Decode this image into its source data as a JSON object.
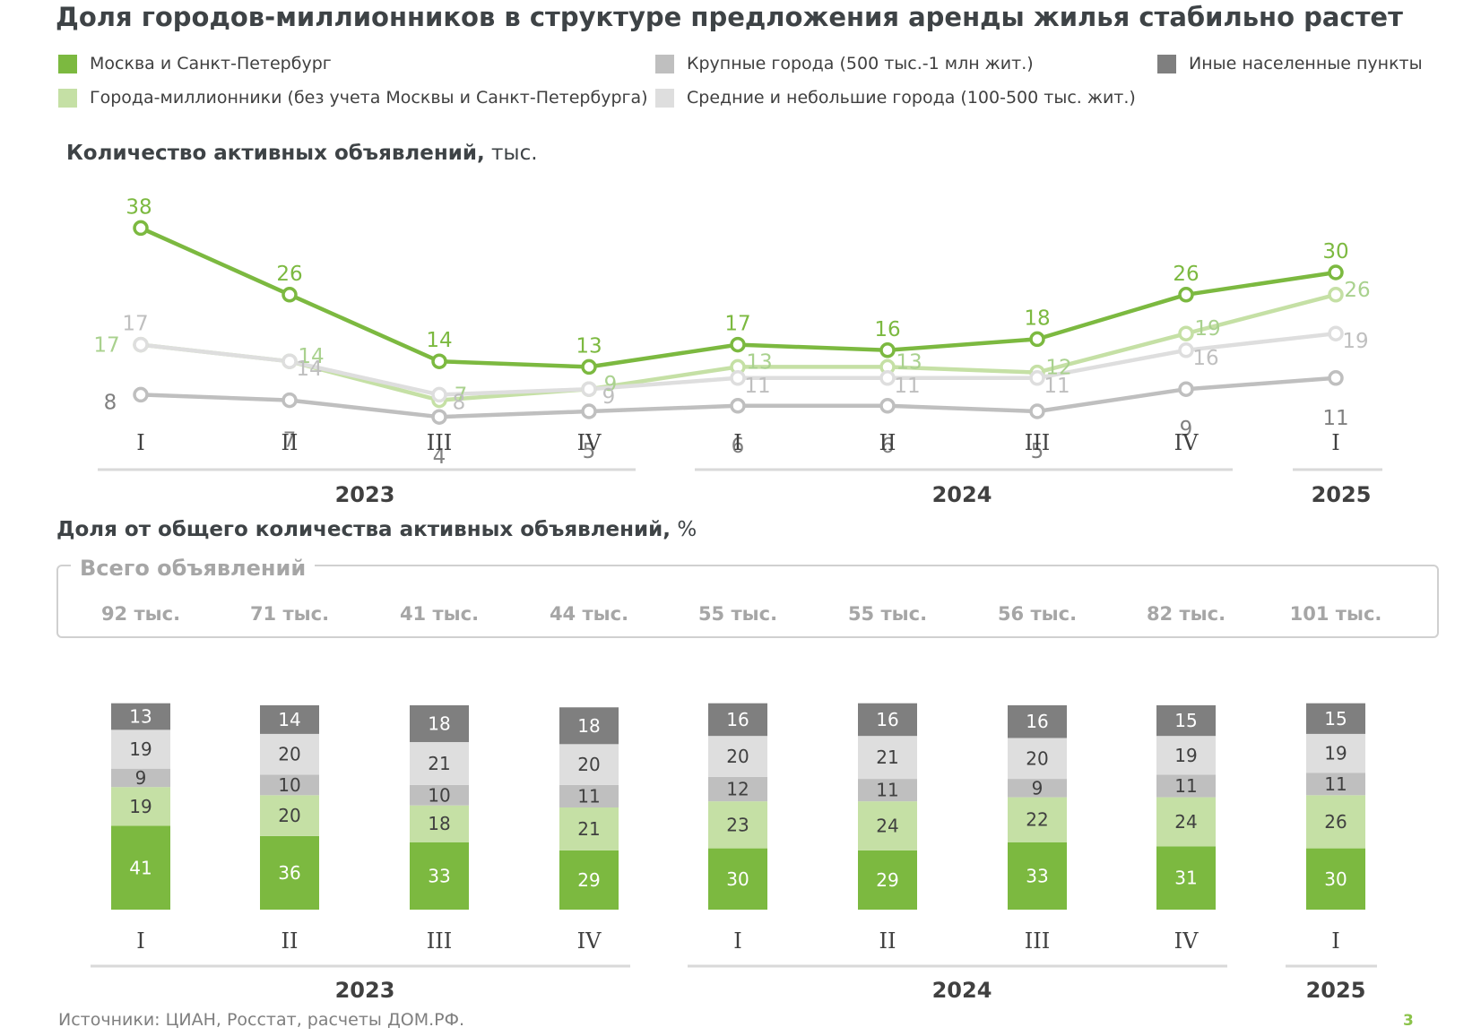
{
  "title": "Доля городов-миллионников в структуре предложения аренды жилья стабильно растет",
  "legend": [
    {
      "label": "Москва и Санкт-Петербург",
      "color": "#7cb940"
    },
    {
      "label": "Крупные города (500 тыс.-1 млн жит.)",
      "color": "#bfbfbf"
    },
    {
      "label": "Иные населенные пункты",
      "color": "#7f7f7f"
    },
    {
      "label": "Города-миллионники (без учета Москвы и Санкт-Петербурга)",
      "color": "#c5e0a5"
    },
    {
      "label": "Средние и небольшие города (100-500 тыс. жит.)",
      "color": "#dedede"
    }
  ],
  "line_section": {
    "title": "Количество активных объявлений,",
    "unit": " тыс."
  },
  "bar_section": {
    "title": "Доля от общего количества активных объявлений,",
    "unit": " %"
  },
  "totals": {
    "title": "Всего объявлений",
    "values": [
      "92 тыс.",
      "71 тыс.",
      "41 тыс.",
      "44 тыс.",
      "55 тыс.",
      "55 тыс.",
      "56 тыс.",
      "82 тыс.",
      "101 тыс."
    ]
  },
  "sources": "Источники: ЦИАН, Росстат, расчеты ДОМ.РФ.",
  "page_number": "3",
  "chart_data": [
    {
      "type": "line",
      "categories": [
        "I",
        "II",
        "III",
        "IV",
        "I",
        "II",
        "III",
        "IV",
        "I"
      ],
      "years": [
        {
          "label": "2023",
          "from": 0,
          "to": 3
        },
        {
          "label": "2024",
          "from": 4,
          "to": 7
        },
        {
          "label": "2025",
          "from": 8,
          "to": 8
        }
      ],
      "series": [
        {
          "key": "msk_spb",
          "color": "#7cb940",
          "label_color": "#7cb940",
          "values": [
            38,
            26,
            14,
            13,
            17,
            16,
            18,
            26,
            30
          ]
        },
        {
          "key": "millionaires",
          "color": "#c5e0a5",
          "label_color": "#a9d18e",
          "values": [
            17,
            14,
            7,
            9,
            13,
            13,
            12,
            19,
            26
          ]
        },
        {
          "key": "medium_small",
          "color": "#dedede",
          "label_color": "#bfbfbf",
          "values": [
            17,
            14,
            8,
            9,
            11,
            11,
            11,
            16,
            19
          ]
        },
        {
          "key": "large",
          "color": "#bfbfbf",
          "label_color": "#808080",
          "values": [
            8,
            7,
            4,
            5,
            6,
            6,
            5,
            9,
            11
          ]
        }
      ]
    },
    {
      "type": "bar",
      "stacked": true,
      "categories": [
        "I",
        "II",
        "III",
        "IV",
        "I",
        "II",
        "III",
        "IV",
        "I"
      ],
      "years": [
        {
          "label": "2023",
          "from": 0,
          "to": 3
        },
        {
          "label": "2024",
          "from": 4,
          "to": 7
        },
        {
          "label": "2025",
          "from": 8,
          "to": 8
        }
      ],
      "series": [
        {
          "key": "msk_spb",
          "color": "#7cb940",
          "text_color": "#ffffff",
          "values": [
            41,
            36,
            33,
            29,
            30,
            29,
            33,
            31,
            30
          ]
        },
        {
          "key": "millionaires",
          "color": "#c5e0a5",
          "text_color": "#404040",
          "values": [
            19,
            20,
            18,
            21,
            23,
            24,
            22,
            24,
            26
          ]
        },
        {
          "key": "large",
          "color": "#bfbfbf",
          "text_color": "#404040",
          "values": [
            9,
            10,
            10,
            11,
            12,
            11,
            9,
            11,
            11
          ]
        },
        {
          "key": "medium_small",
          "color": "#dedede",
          "text_color": "#404040",
          "values": [
            19,
            20,
            21,
            20,
            20,
            21,
            20,
            19,
            19
          ]
        },
        {
          "key": "other",
          "color": "#7f7f7f",
          "text_color": "#ffffff",
          "values": [
            13,
            14,
            18,
            18,
            16,
            16,
            16,
            15,
            15
          ]
        }
      ]
    }
  ]
}
